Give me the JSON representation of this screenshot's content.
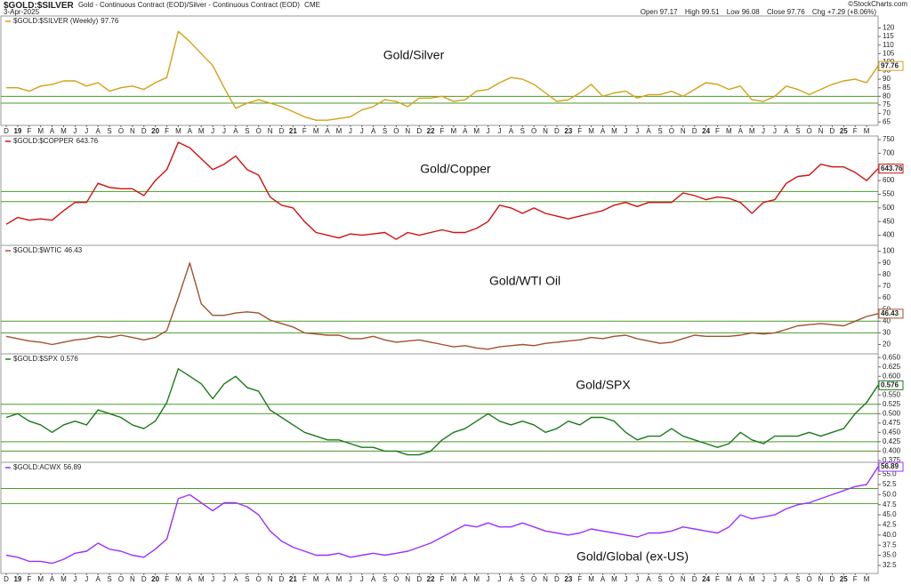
{
  "header": {
    "symbol": "$GOLD:$SILVER",
    "description": "Gold - Continuous Contract (EOD)/Silver - Continuous Contract (EOD)",
    "exchange": "CME",
    "date": "3-Apr-2025",
    "credit": "©StockCharts.com",
    "quote": [
      {
        "label": "Open",
        "value": "97.17"
      },
      {
        "label": "High",
        "value": "99.51"
      },
      {
        "label": "Low",
        "value": "96.08"
      },
      {
        "label": "Close",
        "value": "97.76"
      },
      {
        "label": "Chg",
        "value": "+7.29 (+8.06%)"
      }
    ]
  },
  "chart_data": [
    {
      "type": "line",
      "name": "$GOLD:$SILVER (Weekly)",
      "annotation": "Gold/Silver",
      "color": "#d4a017",
      "categories": [
        "D",
        "19",
        "F",
        "M",
        "A",
        "M",
        "J",
        "J",
        "A",
        "S",
        "O",
        "N",
        "D",
        "20",
        "F",
        "M",
        "A",
        "M",
        "J",
        "J",
        "A",
        "S",
        "O",
        "N",
        "D",
        "21",
        "F",
        "M",
        "A",
        "M",
        "J",
        "J",
        "A",
        "S",
        "O",
        "N",
        "D",
        "22",
        "F",
        "M",
        "A",
        "M",
        "J",
        "J",
        "A",
        "S",
        "O",
        "N",
        "D",
        "23",
        "F",
        "M",
        "A",
        "M",
        "J",
        "J",
        "A",
        "S",
        "O",
        "N",
        "D",
        "24",
        "F",
        "M",
        "A",
        "M",
        "J",
        "J",
        "A",
        "S",
        "O",
        "N",
        "D",
        "25",
        "F",
        "M",
        null
      ],
      "values": [
        85,
        85,
        83,
        86,
        87,
        89,
        89,
        86,
        88,
        83,
        85,
        86,
        84,
        88,
        91,
        118,
        112,
        105,
        98,
        85,
        73,
        76,
        78,
        76,
        74,
        71,
        68,
        66,
        66,
        67,
        68,
        72,
        74,
        78,
        77,
        74,
        79,
        79,
        80,
        77,
        78,
        83,
        84,
        88,
        91,
        90,
        87,
        82,
        77,
        78,
        82,
        87,
        80,
        82,
        83,
        79,
        81,
        81,
        83,
        80,
        84,
        88,
        87,
        84,
        86,
        78,
        77,
        80,
        86,
        84,
        81,
        84,
        87,
        89,
        90,
        88,
        97.76
      ],
      "ylim": [
        63,
        127
      ],
      "yticks": [
        65,
        70,
        75,
        80,
        85,
        90,
        95,
        100,
        105,
        110,
        115,
        120
      ],
      "reference_lines": [
        80,
        76
      ]
    },
    {
      "type": "line",
      "name": "$GOLD:$COPPER",
      "annotation": "Gold/Copper",
      "color": "#d01010",
      "values": [
        440,
        465,
        455,
        460,
        455,
        490,
        520,
        520,
        590,
        575,
        570,
        570,
        545,
        600,
        640,
        740,
        720,
        680,
        640,
        660,
        690,
        640,
        620,
        540,
        510,
        500,
        450,
        410,
        400,
        390,
        405,
        400,
        405,
        410,
        385,
        410,
        400,
        410,
        420,
        410,
        410,
        425,
        450,
        510,
        500,
        480,
        500,
        480,
        470,
        460,
        470,
        480,
        490,
        510,
        520,
        505,
        520,
        520,
        520,
        555,
        545,
        530,
        540,
        535,
        520,
        480,
        520,
        530,
        590,
        615,
        620,
        660,
        650,
        650,
        630,
        600,
        643.76
      ],
      "ylim": [
        363,
        763
      ],
      "yticks": [
        400,
        450,
        500,
        550,
        600,
        650,
        700,
        750
      ],
      "reference_lines": [
        560,
        523
      ]
    },
    {
      "type": "line",
      "name": "$GOLD:$WTIC",
      "annotation": "Gold/WTI Oil",
      "color": "#a0522d",
      "values": [
        27,
        25,
        23,
        22,
        20,
        22,
        24,
        25,
        27,
        26,
        28,
        26,
        24,
        26,
        32,
        60,
        90,
        55,
        45,
        45,
        47,
        48,
        47,
        41,
        38,
        35,
        30,
        29,
        28,
        28,
        25,
        25,
        27,
        24,
        22,
        23,
        24,
        22,
        20,
        18,
        19,
        17,
        16,
        18,
        19,
        20,
        19,
        21,
        22,
        23,
        24,
        26,
        25,
        27,
        28,
        25,
        23,
        21,
        22,
        25,
        28,
        27,
        27,
        27,
        28,
        30,
        29,
        30,
        33,
        36,
        37,
        38,
        37,
        36,
        40,
        44,
        46.43
      ],
      "ylim": [
        12,
        105
      ],
      "yticks": [
        20,
        30,
        40,
        50,
        60,
        70,
        80,
        90,
        100
      ],
      "reference_lines": [
        40,
        30
      ]
    },
    {
      "type": "line",
      "name": "$GOLD:$SPX",
      "annotation": "Gold/SPX",
      "color": "#1a7a1a",
      "values": [
        0.49,
        0.5,
        0.48,
        0.47,
        0.45,
        0.47,
        0.48,
        0.47,
        0.51,
        0.5,
        0.49,
        0.47,
        0.46,
        0.48,
        0.53,
        0.62,
        0.6,
        0.58,
        0.54,
        0.58,
        0.6,
        0.57,
        0.56,
        0.51,
        0.49,
        0.47,
        0.45,
        0.44,
        0.43,
        0.43,
        0.42,
        0.41,
        0.41,
        0.4,
        0.4,
        0.39,
        0.39,
        0.4,
        0.43,
        0.45,
        0.46,
        0.48,
        0.5,
        0.48,
        0.47,
        0.48,
        0.47,
        0.45,
        0.46,
        0.48,
        0.47,
        0.49,
        0.49,
        0.48,
        0.45,
        0.43,
        0.44,
        0.44,
        0.46,
        0.44,
        0.43,
        0.42,
        0.41,
        0.42,
        0.45,
        0.43,
        0.42,
        0.44,
        0.44,
        0.44,
        0.45,
        0.44,
        0.45,
        0.46,
        0.5,
        0.53,
        0.576
      ],
      "ylim": [
        0.37,
        0.66
      ],
      "yticks": [
        0.375,
        {
          "value": 0.4,
          "label": "0.400"
        },
        0.425,
        {
          "value": 0.45,
          "label": "0.450"
        },
        0.475,
        {
          "value": 0.5,
          "label": "0.500"
        },
        0.525,
        {
          "value": 0.55,
          "label": "0.550"
        },
        0.575,
        {
          "value": 0.6,
          "label": "0.600"
        },
        0.625,
        {
          "value": 0.65,
          "label": "0.650"
        }
      ],
      "reference_lines": [
        0.525,
        0.5,
        0.425,
        0.4
      ]
    },
    {
      "type": "line",
      "name": "$GOLD:ACWX",
      "annotation": "Gold/Global (ex-US)",
      "color": "#9b30ff",
      "categories": [
        "D",
        "19",
        "F",
        "M",
        "A",
        "M",
        "J",
        "J",
        "A",
        "S",
        "O",
        "N",
        "D",
        "20",
        "F",
        "M",
        "A",
        "M",
        "J",
        "J",
        "A",
        "S",
        "O",
        "N",
        "D",
        "21",
        "F",
        "M",
        "A",
        "M",
        "J",
        "J",
        "A",
        "S",
        "O",
        "N",
        "D",
        "22",
        "F",
        "M",
        "A",
        "M",
        "J",
        "J",
        "A",
        "S",
        "O",
        "N",
        "D",
        "23",
        "F",
        "M",
        "A",
        "M",
        "J",
        "J",
        "A",
        "S",
        "O",
        "N",
        "D",
        "24",
        "F",
        "M",
        "A",
        "M",
        "J",
        "J",
        "A",
        "S",
        "O",
        "N",
        "D",
        "25",
        "F",
        "M",
        null
      ],
      "values": [
        35,
        34.5,
        33.5,
        33.5,
        33,
        34,
        35.5,
        36,
        38,
        36.5,
        36,
        35,
        34.5,
        36.5,
        39,
        49,
        50,
        48,
        46,
        48,
        48,
        47,
        45,
        41,
        38.5,
        37,
        36,
        35,
        35,
        35.5,
        34.5,
        35,
        35.5,
        35,
        35.5,
        36,
        37,
        38,
        39.5,
        41,
        42.5,
        42,
        43,
        42,
        42,
        43,
        42,
        41,
        40.5,
        40,
        40.5,
        41.5,
        41,
        40.5,
        40,
        39.5,
        40.5,
        40.5,
        41,
        42,
        41.5,
        41,
        40.5,
        42,
        45,
        44,
        44.5,
        45,
        46.5,
        47.5,
        48,
        49,
        50,
        51,
        52,
        52.5,
        56.89
      ],
      "ylim": [
        30.5,
        58
      ],
      "yticks": [
        32.5,
        {
          "value": 35,
          "label": "35.0"
        },
        37.5,
        {
          "value": 40,
          "label": "40.0"
        },
        42.5,
        {
          "value": 45,
          "label": "45.0"
        },
        47.5,
        {
          "value": 50,
          "label": "50.0"
        },
        52.5,
        {
          "value": 55,
          "label": "55.0"
        }
      ],
      "reference_lines": [
        51.5,
        47.8
      ]
    }
  ]
}
